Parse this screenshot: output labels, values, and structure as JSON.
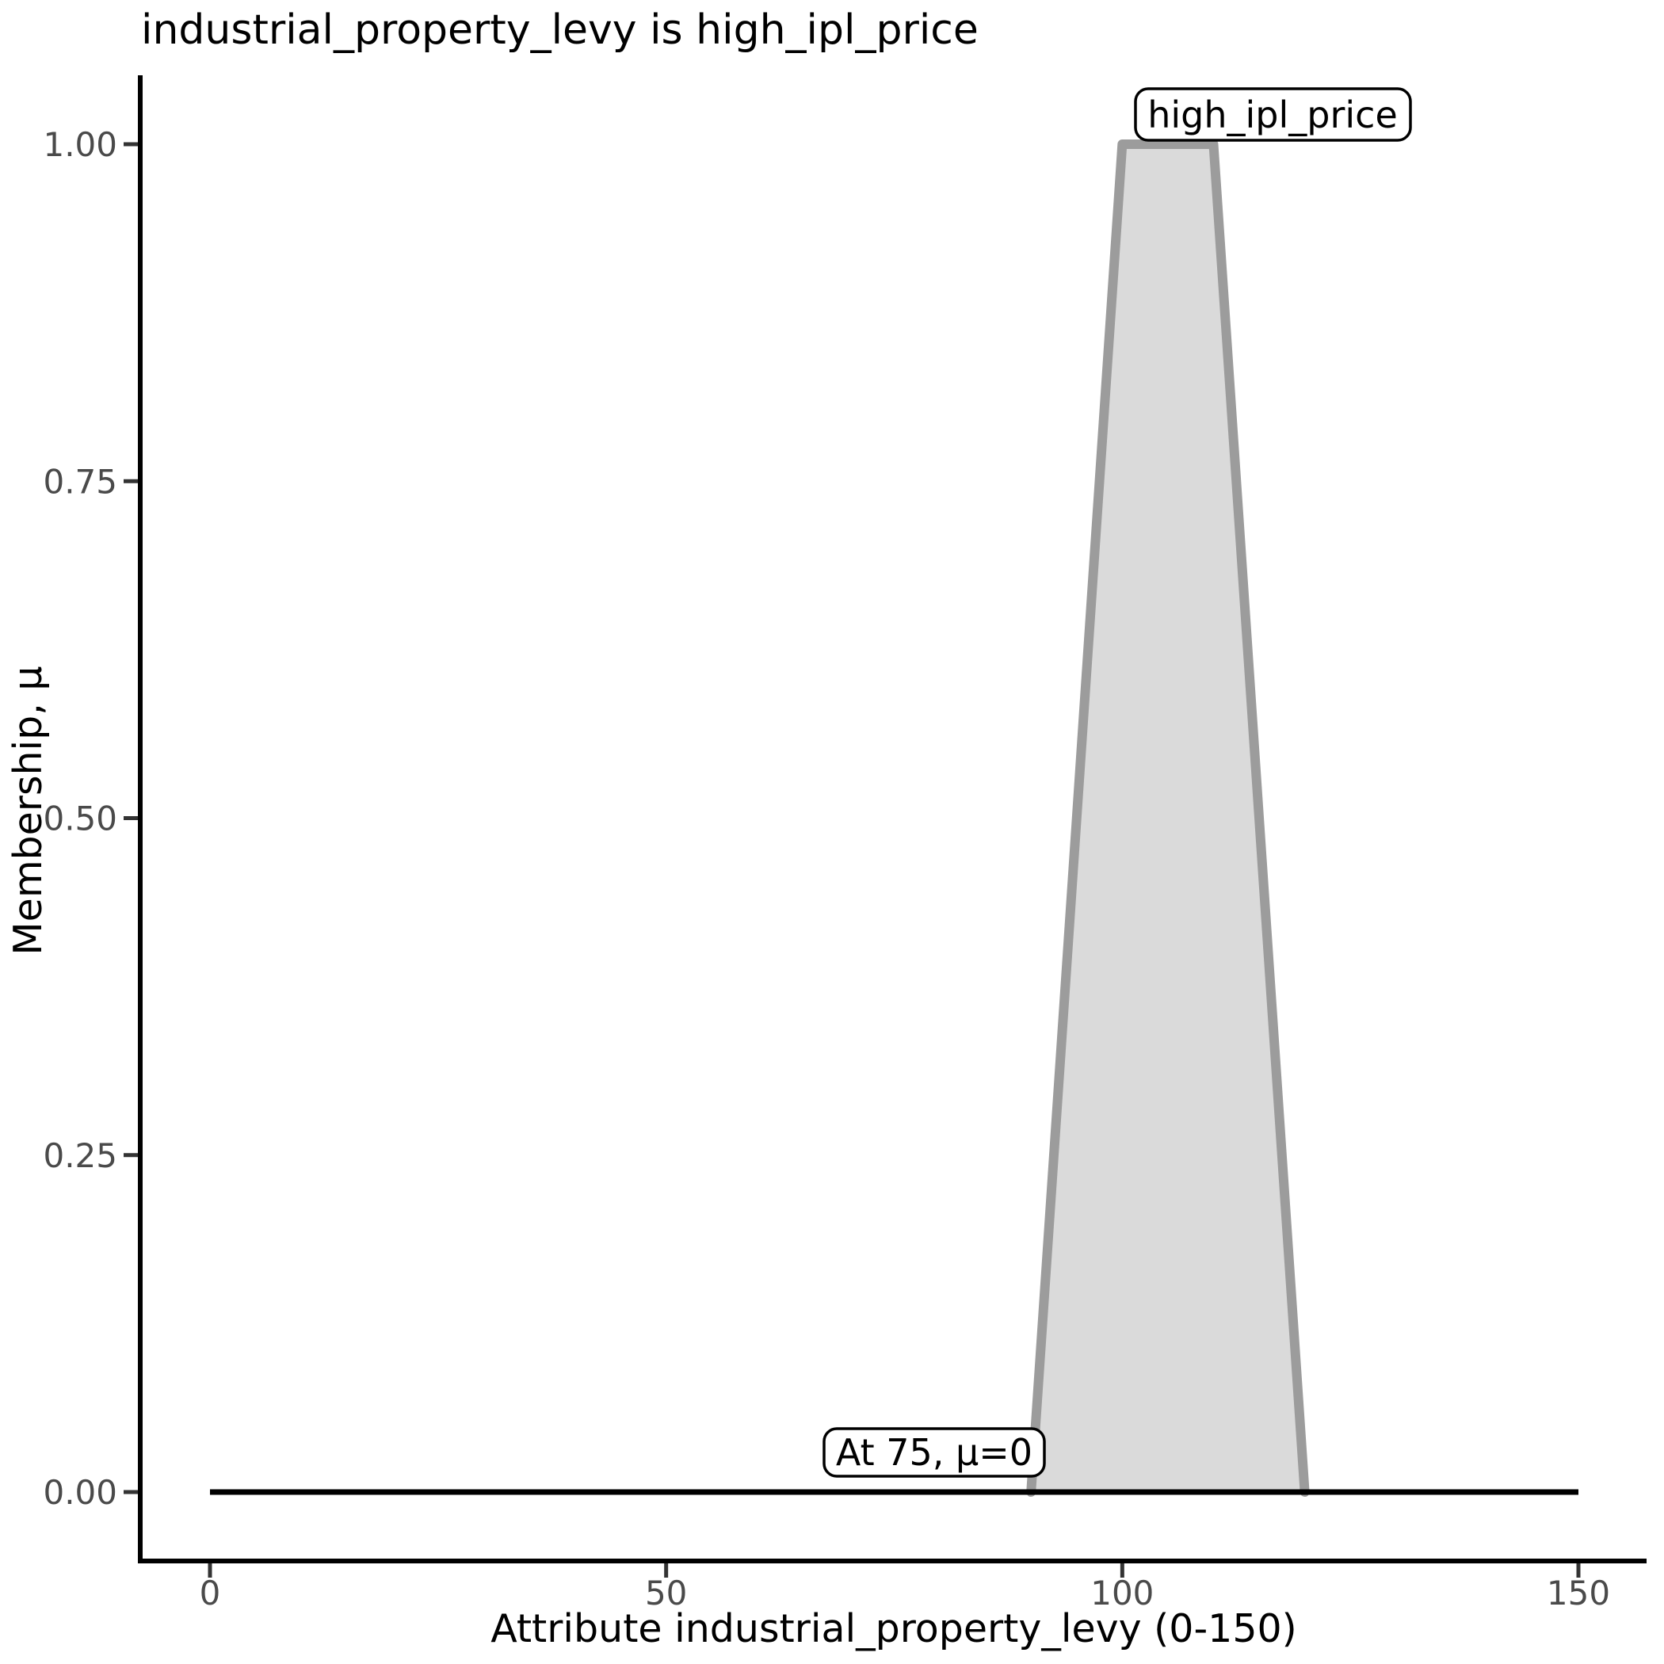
{
  "title": "industrial_property_levy is high_ipl_price",
  "chart_data": {
    "type": "area",
    "subtype": "fuzzy-membership-function",
    "title": "industrial_property_levy is high_ipl_price",
    "xlabel": "Attribute industrial_property_levy (0-150)",
    "ylabel": "Membership, μ",
    "xlim": [
      0,
      150
    ],
    "ylim": [
      0,
      1
    ],
    "grid": false,
    "legend": "none",
    "x_ticks": [
      {
        "value": 0,
        "label": "0"
      },
      {
        "value": 50,
        "label": "50"
      },
      {
        "value": 100,
        "label": "100"
      },
      {
        "value": 150,
        "label": "150"
      }
    ],
    "y_ticks": [
      {
        "value": 0.0,
        "label": "0.00"
      },
      {
        "value": 0.25,
        "label": "0.25"
      },
      {
        "value": 0.5,
        "label": "0.50"
      },
      {
        "value": 0.75,
        "label": "0.75"
      },
      {
        "value": 1.0,
        "label": "1.00"
      }
    ],
    "series": [
      {
        "name": "high_ipl_price",
        "shape": "trapezoid",
        "support": [
          90,
          120
        ],
        "core": [
          100,
          110
        ],
        "points": [
          {
            "x": 90,
            "mu": 0
          },
          {
            "x": 100,
            "mu": 1
          },
          {
            "x": 110,
            "mu": 1
          },
          {
            "x": 120,
            "mu": 0
          }
        ],
        "fill_color": "#dadada",
        "stroke_color": "#9c9c9c"
      }
    ],
    "baseline": {
      "x_start": 0,
      "x_end": 150,
      "mu": 0,
      "color": "#000000"
    },
    "annotations": [
      {
        "text": "high_ipl_price",
        "anchor_x": 105,
        "anchor_mu": 1.0,
        "kind": "set-label"
      },
      {
        "text": "At 75, μ=0",
        "anchor_x": 75,
        "anchor_mu": 0,
        "kind": "point-label"
      }
    ],
    "colors": {
      "axis": "#000000",
      "tick": "#333333",
      "tick_label": "#4a4a4a",
      "annotation_box_fill": "#ffffff",
      "annotation_box_border": "#000000"
    }
  }
}
